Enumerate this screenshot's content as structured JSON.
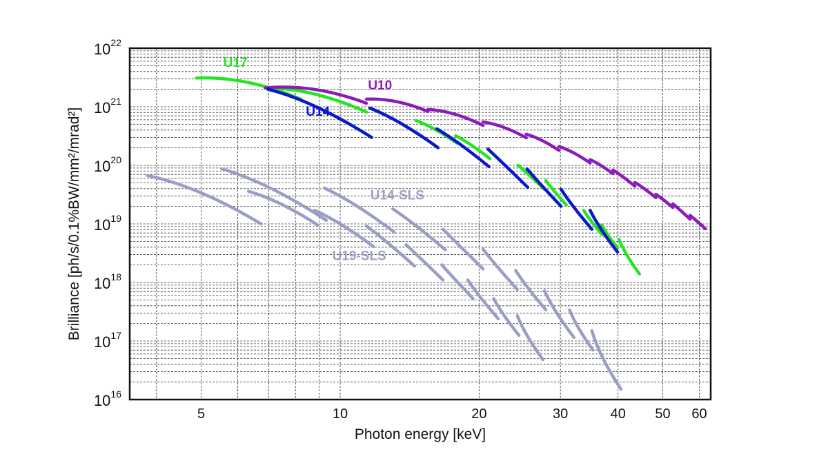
{
  "chart_data": {
    "type": "line",
    "title": "",
    "xlabel": "Photon energy [keV]",
    "ylabel": "Brilliance [ph/s/0.1%BW/mm²/mrad²]",
    "xscale": "log",
    "yscale": "log",
    "xlim": [
      3.5,
      63.5
    ],
    "ylim": [
      1e+16,
      1e+22
    ],
    "grid": true,
    "x_ticks": [
      {
        "value": 5,
        "label": "5"
      },
      {
        "value": 10,
        "label": "10"
      },
      {
        "value": 20,
        "label": "20"
      },
      {
        "value": 30,
        "label": "30"
      },
      {
        "value": 40,
        "label": "40"
      },
      {
        "value": 50,
        "label": "50"
      },
      {
        "value": 60,
        "label": "60"
      }
    ],
    "y_ticks": [
      {
        "value": 1e+16,
        "base": "10",
        "exp": "16"
      },
      {
        "value": 1e+17,
        "base": "10",
        "exp": "17"
      },
      {
        "value": 1e+18,
        "base": "10",
        "exp": "18"
      },
      {
        "value": 1e+19,
        "base": "10",
        "exp": "19"
      },
      {
        "value": 1e+20,
        "base": "10",
        "exp": "20"
      },
      {
        "value": 1e+21,
        "base": "10",
        "exp": "21"
      },
      {
        "value": 1e+22,
        "base": "10",
        "exp": "22"
      }
    ],
    "series": [
      {
        "name": "U17",
        "color": "#22e622",
        "label_at": [
          5.93,
          4.8e+21
        ],
        "segments": [
          [
            [
              4.88,
              3.1e+21
            ],
            [
              8.22,
              1.35e+21
            ]
          ],
          [
            [
              6.88,
              2.1e+21
            ],
            [
              11.4,
              8.1e+20
            ]
          ],
          [
            [
              14.6,
              5.8e+20
            ],
            [
              17.9,
              2.4e+20
            ]
          ],
          [
            [
              17.8,
              3.2e+20
            ],
            [
              21.1,
              1.3e+20
            ]
          ],
          [
            [
              24.3,
              1e+20
            ],
            [
              27.7,
              3.9e+19
            ]
          ],
          [
            [
              27.9,
              5.5e+19
            ],
            [
              30.9,
              2.1e+19
            ]
          ],
          [
            [
              33.7,
              1.7e+19
            ],
            [
              36.9,
              6.6e+18
            ]
          ],
          [
            [
              36.9,
              9.5e+18
            ],
            [
              39.9,
              3.9e+18
            ]
          ],
          [
            [
              40.2,
              5.4e+18
            ],
            [
              44.5,
              1.4e+18
            ]
          ]
        ]
      },
      {
        "name": "U10",
        "color": "#8a1cb8",
        "label_at": [
          12.2,
          1.97e+21
        ],
        "segments": [
          [
            [
              6.88,
              2.1e+21
            ],
            [
              11.4,
              1.15e+21
            ]
          ],
          [
            [
              11.4,
              1.35e+21
            ],
            [
              15.5,
              8.3e+20
            ]
          ],
          [
            [
              15.5,
              9e+20
            ],
            [
              20.4,
              4.8e+20
            ]
          ],
          [
            [
              20.4,
              5.5e+20
            ],
            [
              25.3,
              2.95e+20
            ]
          ],
          [
            [
              25.3,
              3.4e+20
            ],
            [
              29.8,
              1.8e+20
            ]
          ],
          [
            [
              29.8,
              2.1e+20
            ],
            [
              34.8,
              1.1e+20
            ]
          ],
          [
            [
              34.8,
              1.25e+20
            ],
            [
              39.0,
              7.2e+19
            ]
          ],
          [
            [
              39.0,
              8.3e+19
            ],
            [
              43.5,
              4.4e+19
            ]
          ],
          [
            [
              43.5,
              5.1e+19
            ],
            [
              48.3,
              2.8e+19
            ]
          ],
          [
            [
              48.3,
              3.2e+19
            ],
            [
              52.6,
              1.9e+19
            ]
          ],
          [
            [
              52.6,
              2.2e+19
            ],
            [
              57.3,
              1.2e+19
            ]
          ],
          [
            [
              57.3,
              1.4e+19
            ],
            [
              61.8,
              8.3e+18
            ]
          ]
        ]
      },
      {
        "name": "U14",
        "color": "#0a18c8",
        "label_at": [
          8.95,
          7e+20
        ],
        "segments": [
          [
            [
              6.97,
              2e+21
            ],
            [
              11.7,
              3e+20
            ]
          ],
          [
            [
              11.6,
              9.5e+20
            ],
            [
              16.3,
              2e+20
            ]
          ],
          [
            [
              16.2,
              4.2e+20
            ],
            [
              21.0,
              9.5e+19
            ]
          ],
          [
            [
              20.9,
              1.9e+20
            ],
            [
              25.5,
              4.2e+19
            ]
          ],
          [
            [
              25.4,
              8.7e+19
            ],
            [
              30.1,
              2e+19
            ]
          ],
          [
            [
              30.1,
              3.9e+19
            ],
            [
              35.1,
              8.1e+18
            ]
          ],
          [
            [
              34.8,
              1.7e+19
            ],
            [
              39.9,
              3.3e+18
            ]
          ]
        ]
      },
      {
        "name": "U14-SLS",
        "color": "#9a9ec4",
        "label_at": [
          13.3,
          2.6e+19
        ],
        "segments": [
          [
            [
              5.54,
              8.7e+19
            ],
            [
              9.33,
              1.15e+19
            ]
          ],
          [
            [
              9.24,
              4.1e+19
            ],
            [
              13.1,
              7.2e+18
            ]
          ],
          [
            [
              13.0,
              1.8e+19
            ],
            [
              16.9,
              3.6e+18
            ]
          ],
          [
            [
              16.7,
              8.1e+18
            ],
            [
              20.4,
              1.7e+18
            ]
          ],
          [
            [
              20.4,
              3.7e+18
            ],
            [
              24.2,
              7.6e+17
            ]
          ],
          [
            [
              24.0,
              1.6e+18
            ],
            [
              27.9,
              3.4e+17
            ]
          ],
          [
            [
              27.7,
              7.2e+17
            ],
            [
              32.1,
              1.15e+17
            ]
          ],
          [
            [
              31.4,
              3.4e+17
            ],
            [
              35.3,
              7e+16
            ]
          ],
          [
            [
              35.1,
              1.5e+17
            ],
            [
              40.6,
              1.5e+16
            ]
          ]
        ]
      },
      {
        "name": "U19-SLS",
        "color": "#9a9ec4",
        "label_at": [
          11.0,
          2.4e+18
        ],
        "segments": [
          [
            [
              3.82,
              6.7e+19
            ],
            [
              6.74,
              1e+19
            ]
          ],
          [
            [
              6.33,
              3.6e+19
            ],
            [
              8.95,
              9.5e+18
            ]
          ],
          [
            [
              8.81,
              1.7e+19
            ],
            [
              11.8,
              4.1e+18
            ]
          ],
          [
            [
              11.4,
              9.2e+18
            ],
            [
              14.5,
              1.9e+18
            ]
          ],
          [
            [
              13.9,
              4.4e+18
            ],
            [
              16.7,
              1.1e+18
            ]
          ],
          [
            [
              16.6,
              2e+18
            ],
            [
              19.4,
              5.3e+17
            ]
          ],
          [
            [
              18.9,
              1.1e+18
            ],
            [
              22.0,
              2.4e+17
            ]
          ],
          [
            [
              21.5,
              5.3e+17
            ],
            [
              24.4,
              1.25e+17
            ]
          ],
          [
            [
              24.2,
              2.7e+17
            ],
            [
              27.5,
              4.8e+16
            ]
          ]
        ]
      }
    ]
  }
}
